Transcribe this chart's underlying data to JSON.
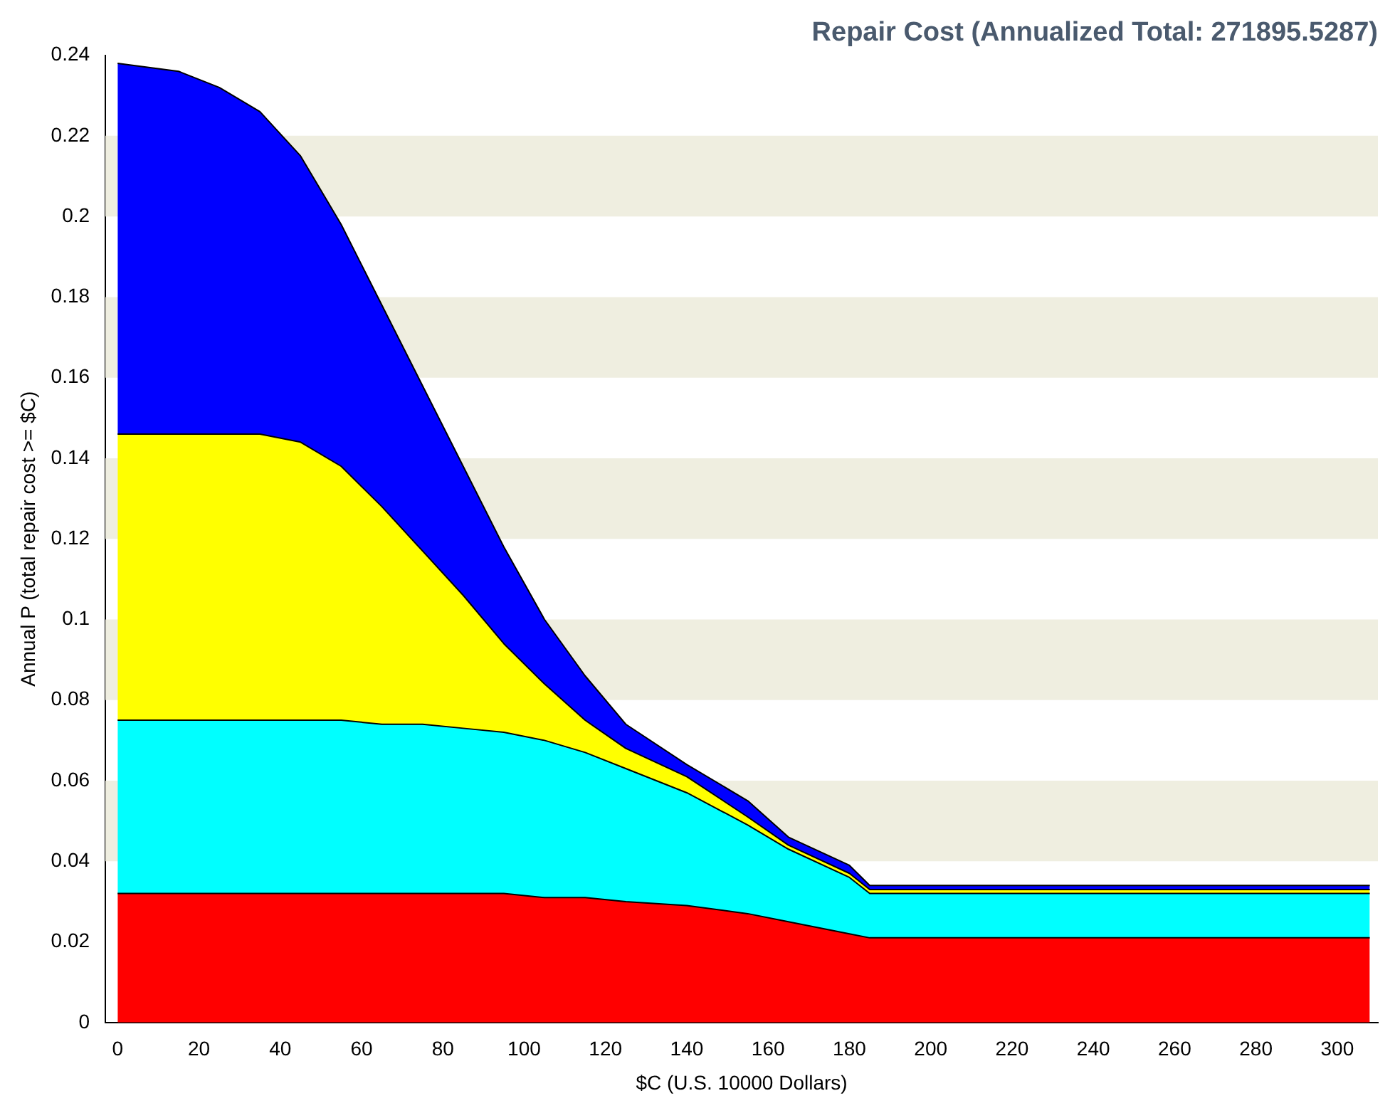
{
  "chart_data": {
    "type": "area",
    "title": "Repair Cost (Annualized Total: 271895.5287)",
    "xlabel": "$C (U.S. 10000 Dollars)",
    "ylabel": "Annual P (total repair cost >= $C)",
    "stacked": true,
    "grid": false,
    "legend": false,
    "x": [
      0,
      15,
      25,
      35,
      45,
      55,
      65,
      75,
      85,
      95,
      105,
      115,
      125,
      140,
      155,
      165,
      180,
      185,
      250,
      308
    ],
    "series": [
      {
        "color": "#ff0000",
        "values": [
          0.032,
          0.032,
          0.032,
          0.032,
          0.032,
          0.032,
          0.032,
          0.032,
          0.032,
          0.032,
          0.031,
          0.031,
          0.03,
          0.029,
          0.027,
          0.025,
          0.022,
          0.021,
          0.021,
          0.021
        ]
      },
      {
        "color": "#00ffff",
        "values": [
          0.043,
          0.043,
          0.043,
          0.043,
          0.043,
          0.043,
          0.042,
          0.042,
          0.041,
          0.04,
          0.039,
          0.036,
          0.033,
          0.028,
          0.022,
          0.018,
          0.014,
          0.011,
          0.011,
          0.011
        ]
      },
      {
        "color": "#ffff00",
        "values": [
          0.071,
          0.071,
          0.071,
          0.071,
          0.069,
          0.063,
          0.054,
          0.043,
          0.033,
          0.022,
          0.014,
          0.008,
          0.005,
          0.004,
          0.002,
          0.001,
          0.001,
          0.001,
          0.001,
          0.001
        ]
      },
      {
        "color": "#0000ff",
        "values": [
          0.092,
          0.09,
          0.086,
          0.08,
          0.071,
          0.06,
          0.05,
          0.041,
          0.032,
          0.024,
          0.016,
          0.011,
          0.006,
          0.003,
          0.004,
          0.002,
          0.002,
          0.001,
          0.001,
          0.001
        ]
      }
    ],
    "xlim": [
      -3,
      310
    ],
    "xticks": [
      0,
      20,
      40,
      60,
      80,
      100,
      120,
      140,
      160,
      180,
      200,
      220,
      240,
      260,
      280,
      300
    ],
    "ylim": [
      0,
      0.24
    ],
    "yticks": [
      0,
      0.02,
      0.04,
      0.06,
      0.08,
      0.1,
      0.12,
      0.14,
      0.16,
      0.18,
      0.2,
      0.22,
      0.24
    ],
    "bands": [
      {
        "axis": "y",
        "from": 0.04,
        "to": 0.06,
        "color": "#efeee0"
      },
      {
        "axis": "y",
        "from": 0.08,
        "to": 0.1,
        "color": "#efeee0"
      },
      {
        "axis": "y",
        "from": 0.12,
        "to": 0.14,
        "color": "#efeee0"
      },
      {
        "axis": "y",
        "from": 0.16,
        "to": 0.18,
        "color": "#efeee0"
      },
      {
        "axis": "y",
        "from": 0.2,
        "to": 0.22,
        "color": "#efeee0"
      }
    ]
  }
}
